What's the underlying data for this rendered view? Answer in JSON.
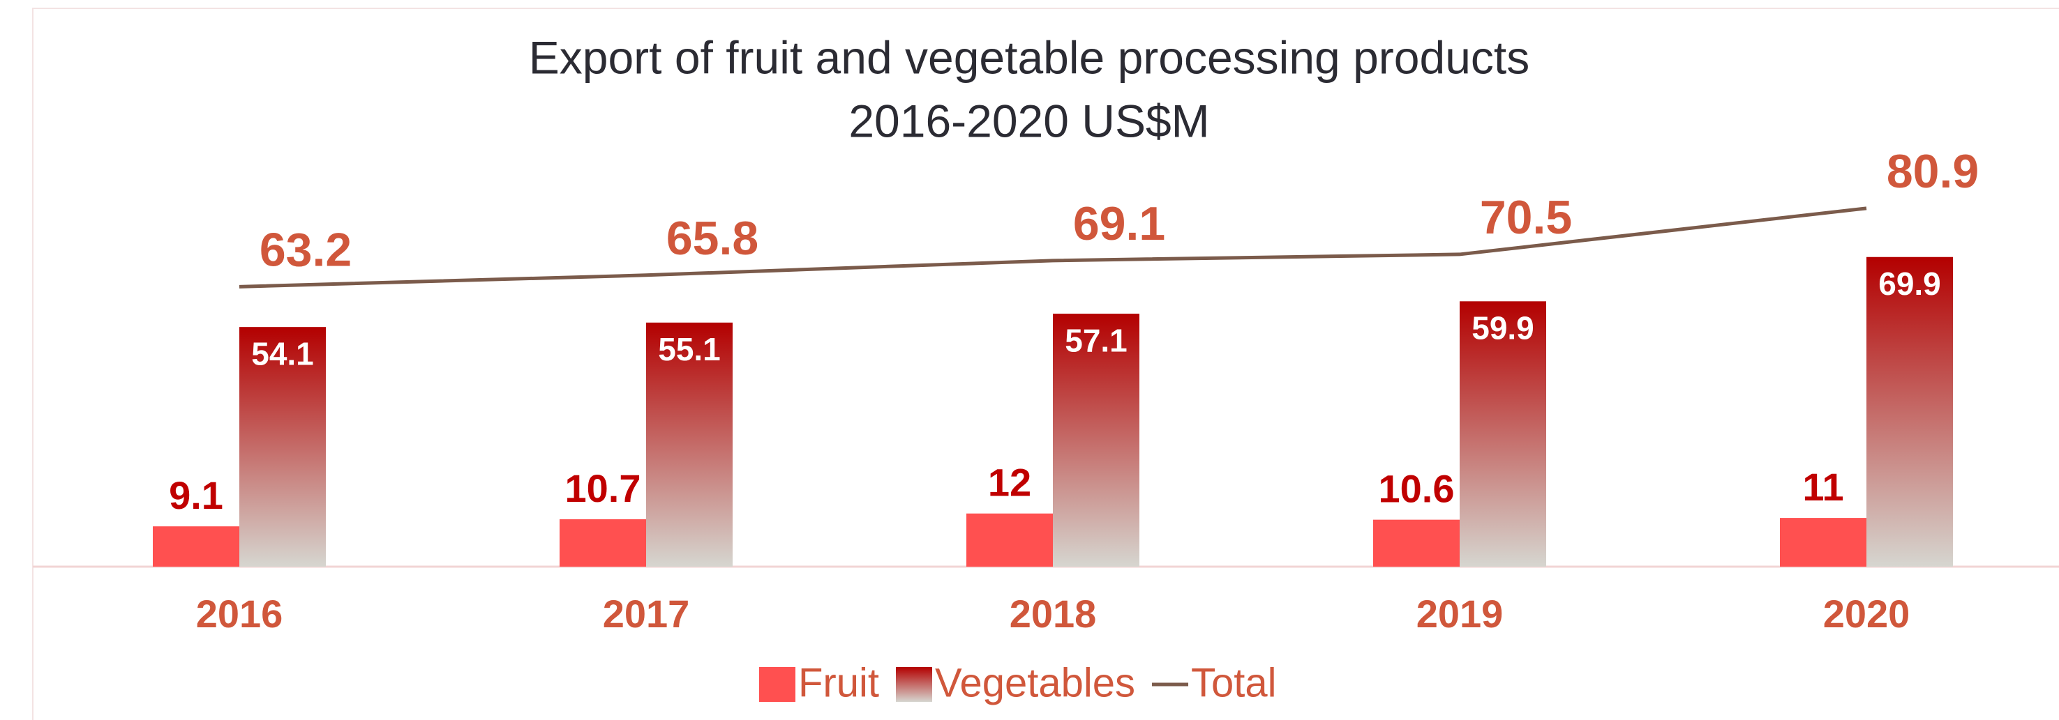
{
  "chart_data": {
    "type": "bar",
    "title": "Export of fruit and vegetable processing products",
    "subtitle": "2016-2020 US$M",
    "categories": [
      "2016",
      "2017",
      "2018",
      "2019",
      "2020"
    ],
    "series": [
      {
        "name": "Fruit",
        "type": "bar",
        "color": "#ff5050",
        "values": [
          9.1,
          10.7,
          12,
          10.6,
          11
        ]
      },
      {
        "name": "Vegetables",
        "type": "bar",
        "color": "#b30000",
        "gradient": [
          "#b30000",
          "#d6d6d0"
        ],
        "values": [
          54.1,
          55.1,
          57.1,
          59.9,
          69.9
        ]
      },
      {
        "name": "Total",
        "type": "line",
        "color": "#7b5b4b",
        "values": [
          63.2,
          65.8,
          69.1,
          70.5,
          80.9
        ]
      }
    ],
    "ylim": [
      0,
      90
    ],
    "legend": "bottom"
  }
}
